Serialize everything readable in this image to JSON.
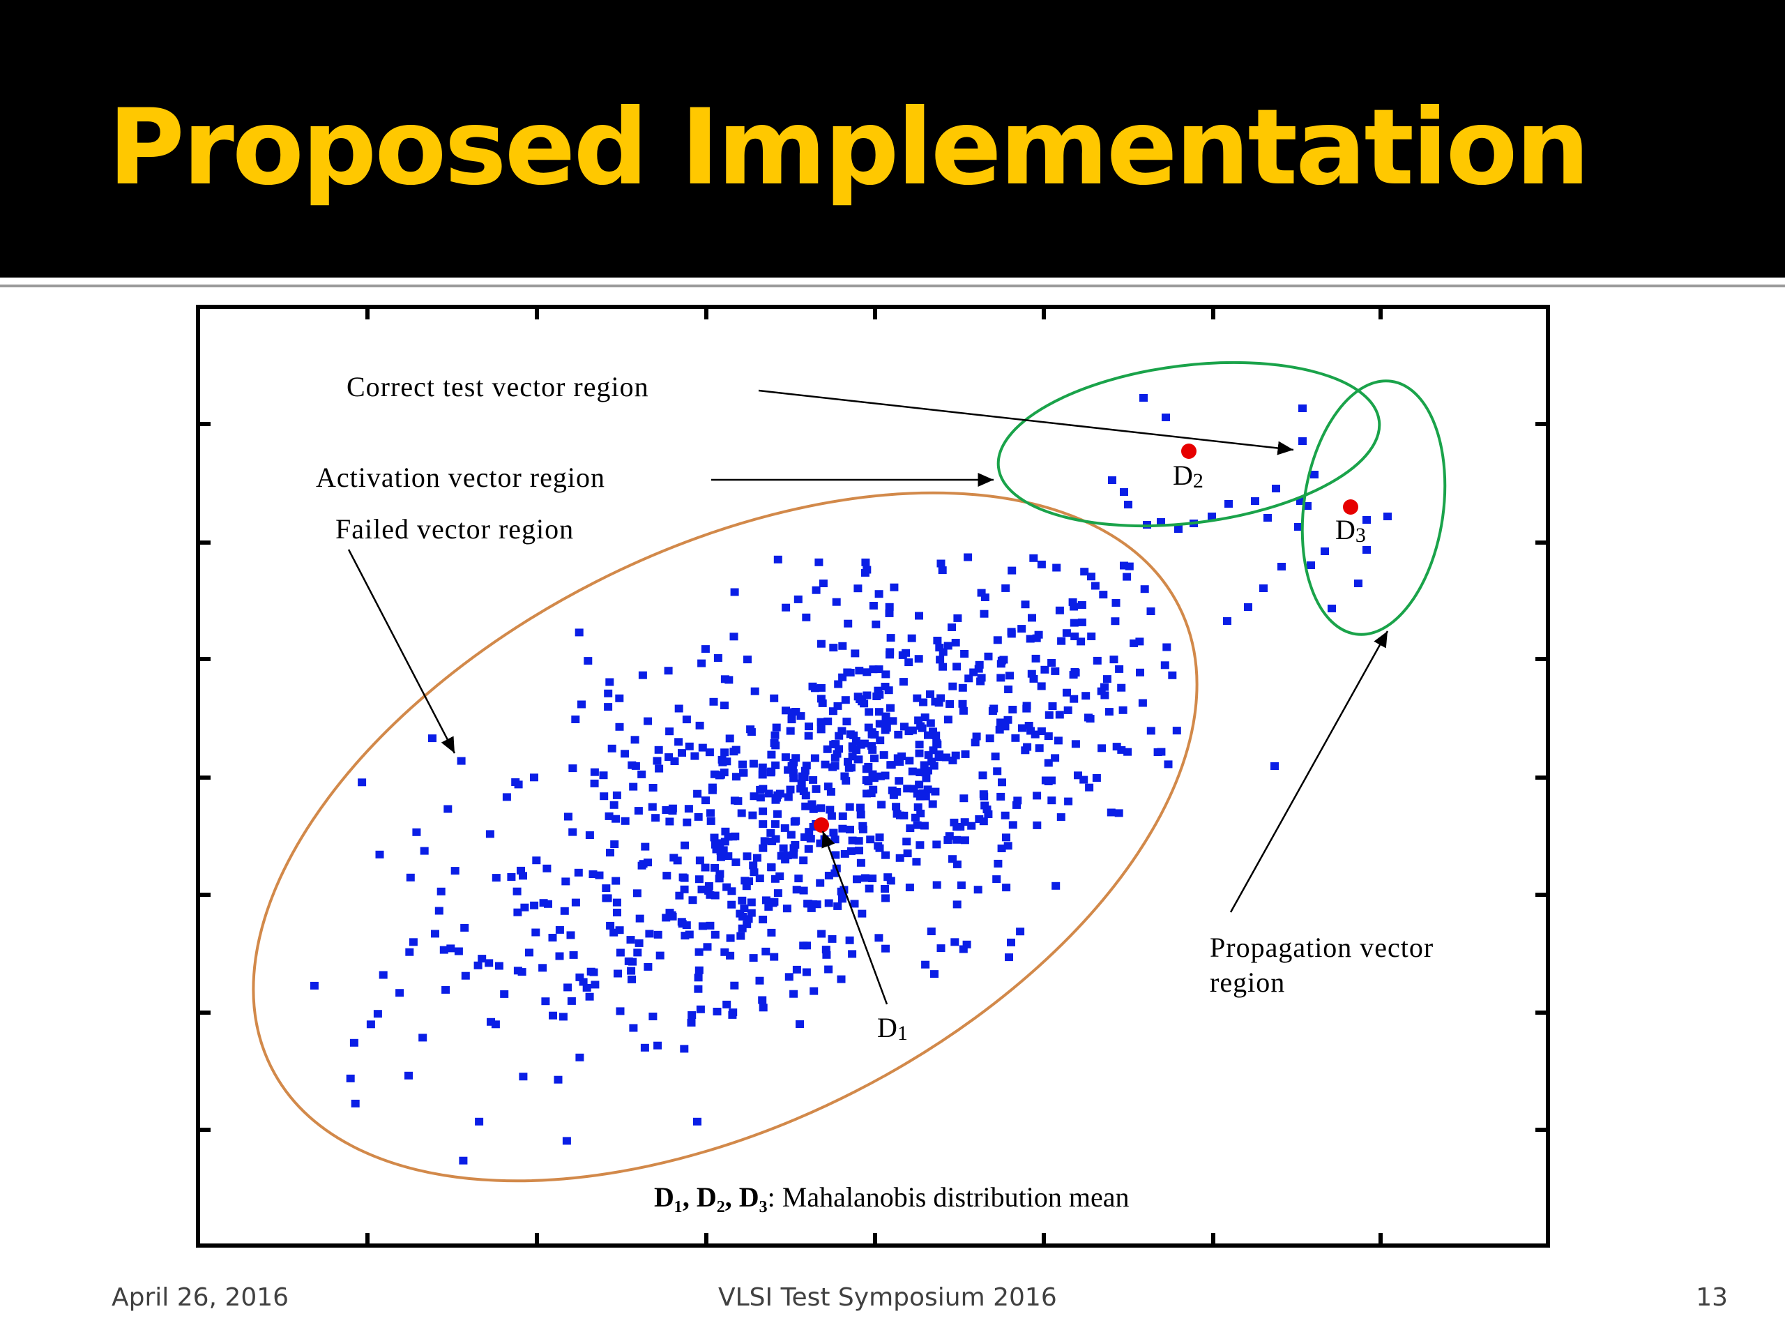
{
  "slide": {
    "title": "Proposed Implementation",
    "footer_date": "April 26, 2016",
    "footer_center": "VLSI Test Symposium 2016",
    "page_number": "13"
  },
  "colors": {
    "header_bg": "#000000",
    "title": "#ffc800",
    "points": "#0a1ee6",
    "means": "#e60000",
    "failed_region": "#d2894a",
    "green_regions": "#1aa34a"
  },
  "chart_data": {
    "type": "scatter",
    "xlabel": "",
    "ylabel": "",
    "grid": false,
    "series": [
      {
        "name": "",
        "note": "approx. 900 blue square markers forming an elongated cluster along the diagonal, plus sparse points in the upper-right regions"
      }
    ],
    "annotations": {
      "correct": "Correct test vector region",
      "activation": "Activation vector region",
      "failed": "Failed vector region",
      "propagation_1": "Propagation vector",
      "propagation_2": "region",
      "d1": "D",
      "d1_sub": "1",
      "d2": "D",
      "d2_sub": "2",
      "d3": "D",
      "d3_sub": "3",
      "legend_bold": "D₁, D₂, D₃",
      "legend_rest": ": Mahalanobis distribution mean"
    }
  }
}
